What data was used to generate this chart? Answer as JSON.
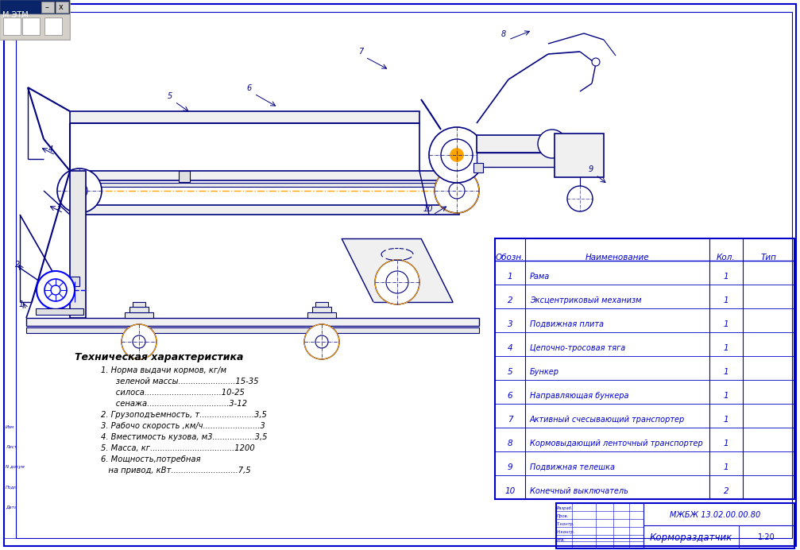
{
  "bg_color": "#f0f0f0",
  "white": "#ffffff",
  "border_color": "#0000cc",
  "drawing_color": "#000080",
  "orange": "#FFA500",
  "blue": "#0000ff",
  "gray_toolbar": "#c8c8c8",
  "gray_dark": "#888888",
  "title_tech": "Техническая характеристика",
  "tech_specs": [
    "1. Норма выдачи кормов, кг/м",
    "      зеленой массы.......................15-35",
    "      силоса...............................10-25",
    "      сенажа.................................3-12",
    "2. Грузоподъемность, т......................3,5",
    "3. Рабочо скорость ,км/ч.......................3",
    "4. Вместимость кузова, м3.................3,5",
    "5. Масса, кг..................................1200",
    "6. Мощность,потребная",
    "   на привод, кВт...........................7,5"
  ],
  "table_headers": [
    "Обозн.",
    "Наименование",
    "Кол.",
    "Тип"
  ],
  "table_rows": [
    [
      "1",
      "Рама",
      "1",
      ""
    ],
    [
      "2",
      "Эксцентриковый механизм",
      "1",
      ""
    ],
    [
      "3",
      "Подвижная плита",
      "1",
      ""
    ],
    [
      "4",
      "Цепочно-тросовая тяга",
      "1",
      ""
    ],
    [
      "5",
      "Бункер",
      "1",
      ""
    ],
    [
      "6",
      "Направляющая бункера",
      "1",
      ""
    ],
    [
      "7",
      "Активный счесывающий транспортер",
      "1",
      ""
    ],
    [
      "8",
      "Кормовыдающий ленточный транспортер",
      "1",
      ""
    ],
    [
      "9",
      "Подвижная телешка",
      "1",
      ""
    ],
    [
      "10",
      "Конечный выключатель",
      "2",
      ""
    ]
  ],
  "title_block_text": "МЖБЖ 13.02.00.00.80",
  "drawing_name": "Кормораздатчик",
  "scale": "1:20"
}
